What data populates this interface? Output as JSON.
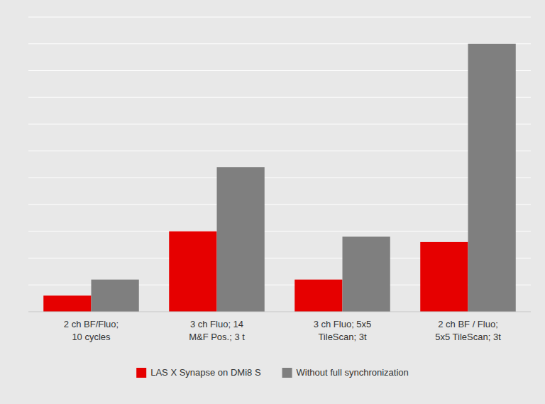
{
  "chart_data": {
    "type": "bar",
    "categories": [
      "2 ch BF/Fluo;\n10 cycles",
      "3 ch Fluo; 14\nM&F Pos.; 3 t",
      "3 ch Fluo; 5x5\nTileScan; 3t",
      "2 ch BF / Fluo;\n5x5 TileScan; 3t"
    ],
    "series": [
      {
        "name": "LAS X Synapse on DMi8 S",
        "color": "#e60000",
        "values": [
          6,
          30,
          12,
          26
        ]
      },
      {
        "name": "Without full synchronization",
        "color": "#7f7f7f",
        "values": [
          12,
          54,
          28,
          100
        ]
      }
    ],
    "ylim": [
      0,
      110
    ],
    "yticks": [
      0,
      10,
      20,
      30,
      40,
      50,
      60,
      70,
      80,
      90,
      100,
      110
    ],
    "grid": true,
    "legend": "bottom",
    "tick_labels": "x"
  }
}
